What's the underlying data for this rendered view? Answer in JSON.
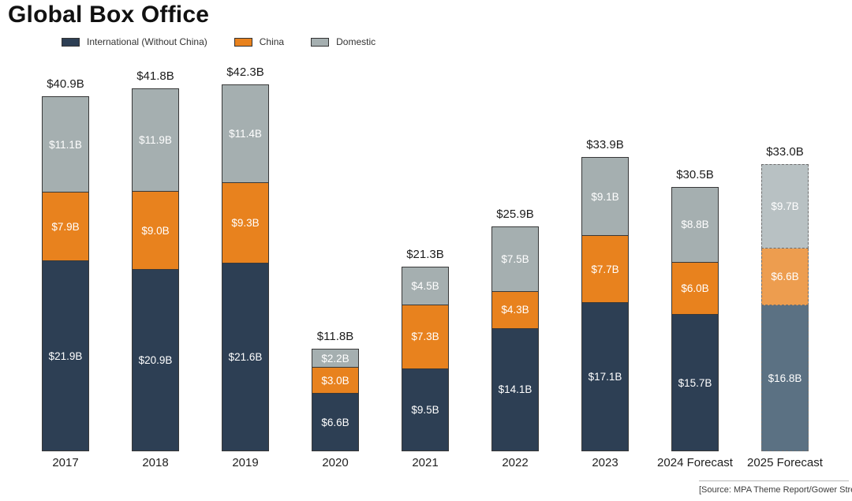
{
  "title": "Global Box Office",
  "legend": [
    {
      "label": "International (Without China)",
      "color": "#2d3f54"
    },
    {
      "label": "China",
      "color": "#e8821e"
    },
    {
      "label": "Domestic",
      "color": "#a5afb0"
    }
  ],
  "source_note": "[Source: MPA Theme Report/Gower Street]",
  "colors": {
    "international": "#2d3f54",
    "china": "#e8821e",
    "domestic": "#a5afb0",
    "international_forecast_light": "#5b7183",
    "china_forecast_light": "#ed9d4f",
    "domestic_forecast_light": "#b8c1c3",
    "segment_border": "#383838",
    "dashed_border": "#6e6e6e",
    "label_text": "#ffffff"
  },
  "chart_data": {
    "type": "bar",
    "stacked": true,
    "title": "Global Box Office",
    "xlabel": "",
    "ylabel": "",
    "unit": "USD billions",
    "ylim": [
      0,
      45
    ],
    "grid": false,
    "legend_position": "top-left",
    "categories": [
      "2017",
      "2018",
      "2019",
      "2020",
      "2021",
      "2022",
      "2023",
      "2024 Forecast",
      "2025 Forecast"
    ],
    "series": [
      {
        "name": "International (Without China)",
        "key": "international",
        "values": [
          21.9,
          20.9,
          21.6,
          6.6,
          9.5,
          14.1,
          17.1,
          15.7,
          16.8
        ],
        "labels": [
          "$21.9B",
          "$20.9B",
          "$21.6B",
          "$6.6B",
          "$9.5B",
          "$14.1B",
          "$17.1B",
          "$15.7B",
          "$16.8B"
        ]
      },
      {
        "name": "China",
        "key": "china",
        "values": [
          7.9,
          9.0,
          9.3,
          3.0,
          7.3,
          4.3,
          7.7,
          6.0,
          6.6
        ],
        "labels": [
          "$7.9B",
          "$9.0B",
          "$9.3B",
          "$3.0B",
          "$7.3B",
          "$4.3B",
          "$7.7B",
          "$6.0B",
          "$6.6B"
        ]
      },
      {
        "name": "Domestic",
        "key": "domestic",
        "values": [
          11.1,
          11.9,
          11.4,
          2.2,
          4.5,
          7.5,
          9.1,
          8.8,
          9.7
        ],
        "labels": [
          "$11.1B",
          "$11.9B",
          "$11.4B",
          "$2.2B",
          "$4.5B",
          "$7.5B",
          "$9.1B",
          "$8.8B",
          "$9.7B"
        ]
      }
    ],
    "totals": {
      "values": [
        40.9,
        41.8,
        42.3,
        11.8,
        21.3,
        25.9,
        33.9,
        30.5,
        33.0
      ],
      "labels": [
        "$40.9B",
        "$41.8B",
        "$42.3B",
        "$11.8B",
        "$21.3B",
        "$25.9B",
        "$33.9B",
        "$30.5B",
        "$33.0B"
      ]
    },
    "dashed_forecast_categories": [
      "2025 Forecast"
    ]
  }
}
